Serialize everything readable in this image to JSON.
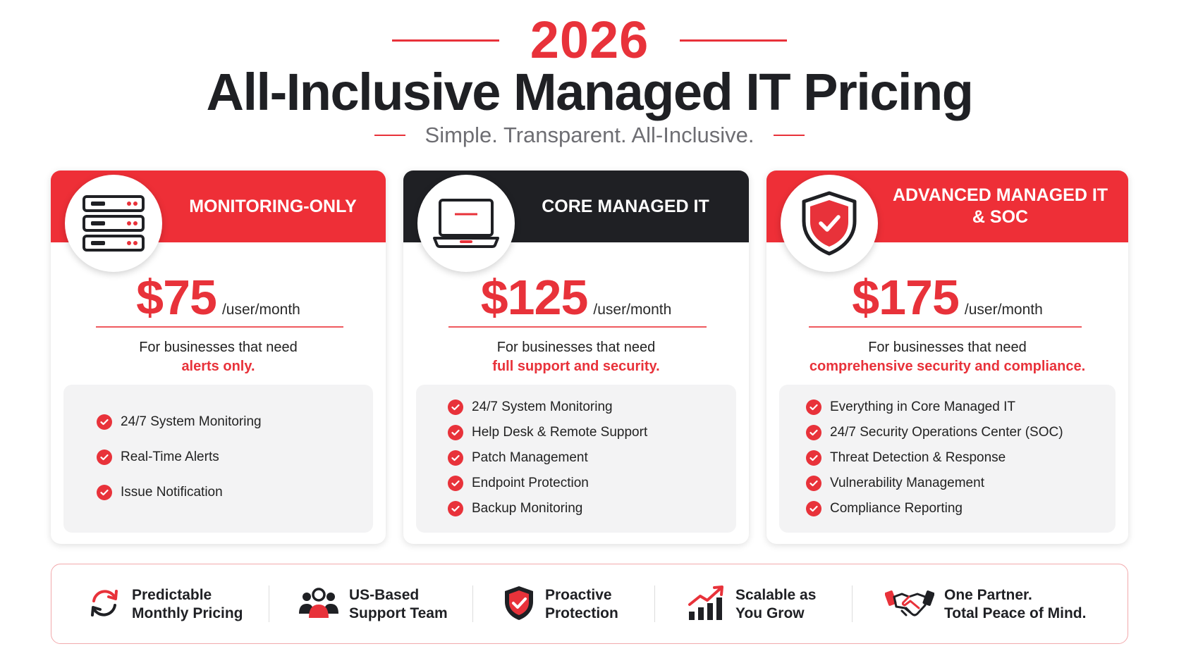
{
  "header": {
    "year": "2026",
    "title": "All-Inclusive Managed IT Pricing",
    "subtitle": "Simple. Transparent. All-Inclusive.",
    "accent_color": "#e8323a"
  },
  "plans": [
    {
      "title": "MONITORING-ONLY",
      "icon": "server-rack-icon",
      "band_color": "#ee2f37",
      "price": "$75",
      "per": "/user/month",
      "desc_line1": "For businesses that need",
      "desc_line2": "alerts only.",
      "features": [
        "24/7 System Monitoring",
        "Real-Time Alerts",
        "Issue Notification"
      ]
    },
    {
      "title": "CORE MANAGED IT",
      "icon": "laptop-icon",
      "band_color": "#1f2024",
      "price": "$125",
      "per": "/user/month",
      "desc_line1": "For businesses that need",
      "desc_line2": "full support and security.",
      "features": [
        "24/7 System Monitoring",
        "Help Desk & Remote Support",
        "Patch Management",
        "Endpoint Protection",
        "Backup Monitoring"
      ]
    },
    {
      "title_line1": "ADVANCED MANAGED IT",
      "title_line2": "& SOC",
      "icon": "shield-check-icon",
      "band_color": "#ee2f37",
      "price": "$175",
      "per": "/user/month",
      "desc_line1": "For businesses that need",
      "desc_line2": "comprehensive security and compliance.",
      "features": [
        "Everything in Core Managed IT",
        "24/7 Security Operations Center (SOC)",
        "Threat Detection & Response",
        "Vulnerability Management",
        "Compliance Reporting"
      ]
    }
  ],
  "benefits": [
    {
      "line1": "Predictable",
      "line2": "Monthly Pricing",
      "icon": "refresh-cycle-icon"
    },
    {
      "line1": "US-Based",
      "line2": "Support Team",
      "icon": "team-people-icon"
    },
    {
      "line1": "Proactive",
      "line2": "Protection",
      "icon": "shield-check-icon"
    },
    {
      "line1": "Scalable as",
      "line2": "You Grow",
      "icon": "growth-chart-icon"
    },
    {
      "line1": "One Partner.",
      "line2": "Total Peace of Mind.",
      "icon": "handshake-icon"
    }
  ]
}
